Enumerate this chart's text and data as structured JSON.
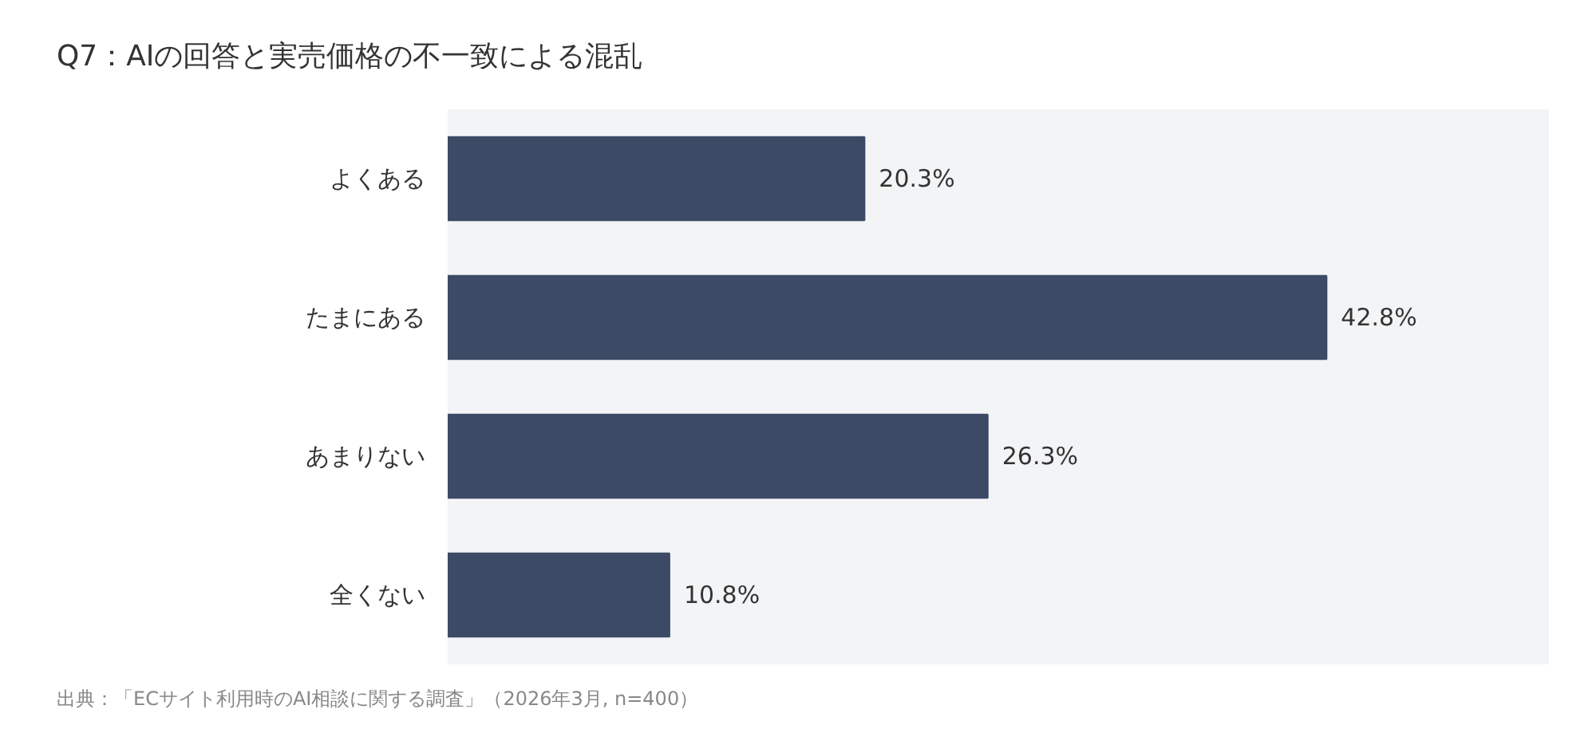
{
  "chart_data": {
    "type": "bar",
    "orientation": "horizontal",
    "title": "Q7：AIの回答と実売価格の不一致による混乱",
    "categories": [
      "よくある",
      "たまにある",
      "あまりない",
      "全くない"
    ],
    "values": [
      20.3,
      42.8,
      26.3,
      10.8
    ],
    "color": "#3d4a66",
    "data_labels": true,
    "value_labels": [
      "20.3%",
      "42.8%",
      "26.3%",
      "10.8%"
    ],
    "grid": false,
    "annotations": [
      "出典：「ECサイト利用時のAI相談に関する調査」（2026年3月, n=400）"
    ]
  }
}
